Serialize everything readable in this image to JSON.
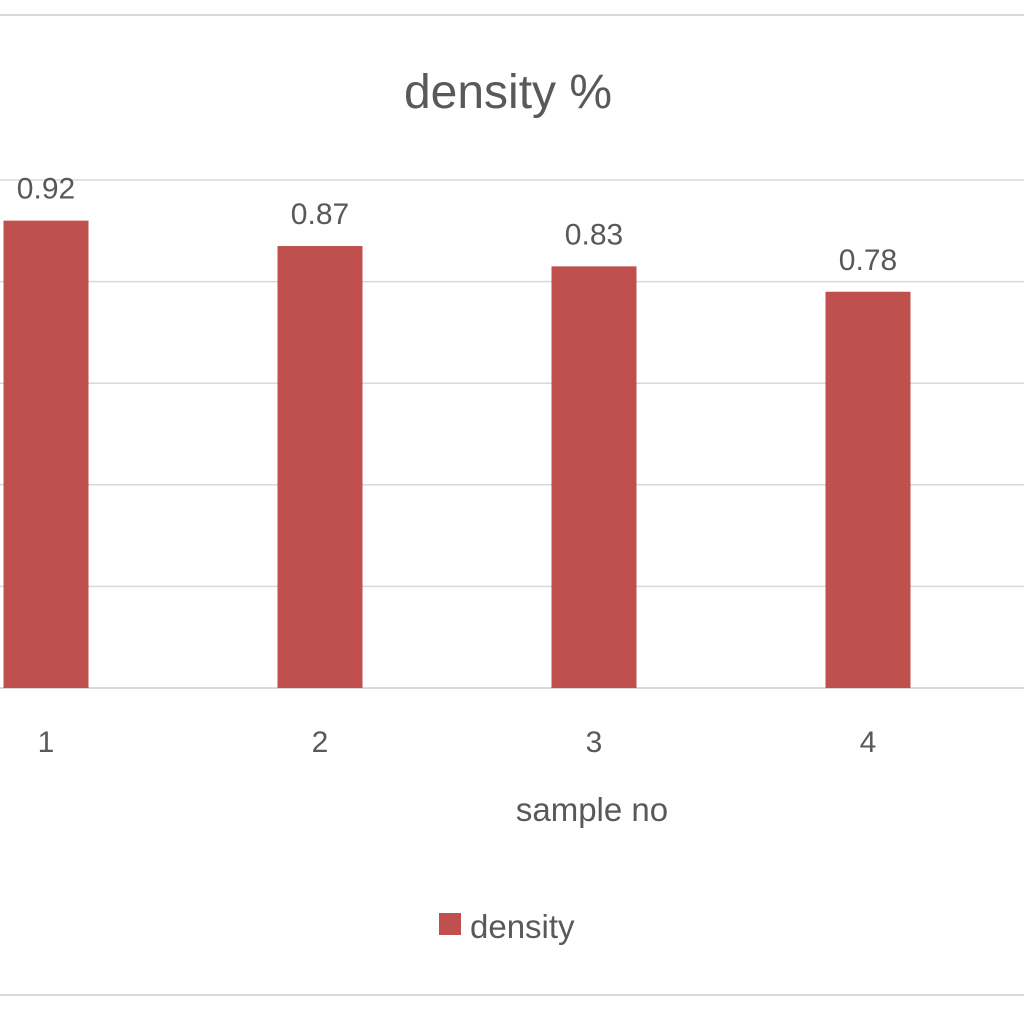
{
  "chart_data": {
    "type": "bar",
    "title": "density %",
    "xlabel": "sample no",
    "ylabel": "",
    "categories": [
      "1",
      "2",
      "3",
      "4"
    ],
    "series": [
      {
        "name": "density",
        "values": [
          0.92,
          0.87,
          0.83,
          0.78
        ],
        "data_labels": [
          "0.92",
          "0.87",
          "0.83",
          "0.78"
        ],
        "color": "#c0504d"
      }
    ],
    "ylim": [
      0,
      1
    ],
    "grid": true,
    "legend_position": "bottom",
    "colors": {
      "gridline": "#d9d9d9",
      "text": "#595959",
      "title": "#595959",
      "border": "#d9d9d9"
    }
  }
}
